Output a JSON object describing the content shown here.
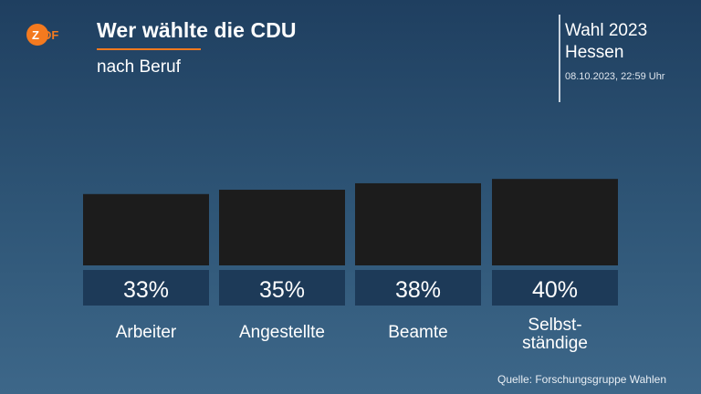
{
  "logo_text": "ZDF",
  "header": {
    "title": "Wer wählte die CDU",
    "subtitle": "nach Beruf"
  },
  "election": {
    "line1": "Wahl 2023",
    "line2": "Hessen",
    "timestamp": "08.10.2023, 22:59 Uhr"
  },
  "source": "Quelle: Forschungsgruppe Wahlen",
  "colors": {
    "accent": "#f47a1f",
    "bar": "#1c1c1c",
    "value_box": "#1d3a58"
  },
  "chart_data": {
    "type": "bar",
    "categories": [
      [
        "Arbeiter"
      ],
      [
        "Angestellte"
      ],
      [
        "Beamte"
      ],
      [
        "Selbst-",
        "ständige"
      ]
    ],
    "values": [
      33,
      35,
      38,
      40
    ],
    "value_labels": [
      "33%",
      "35%",
      "38%",
      "40%"
    ],
    "unit": "%"
  }
}
